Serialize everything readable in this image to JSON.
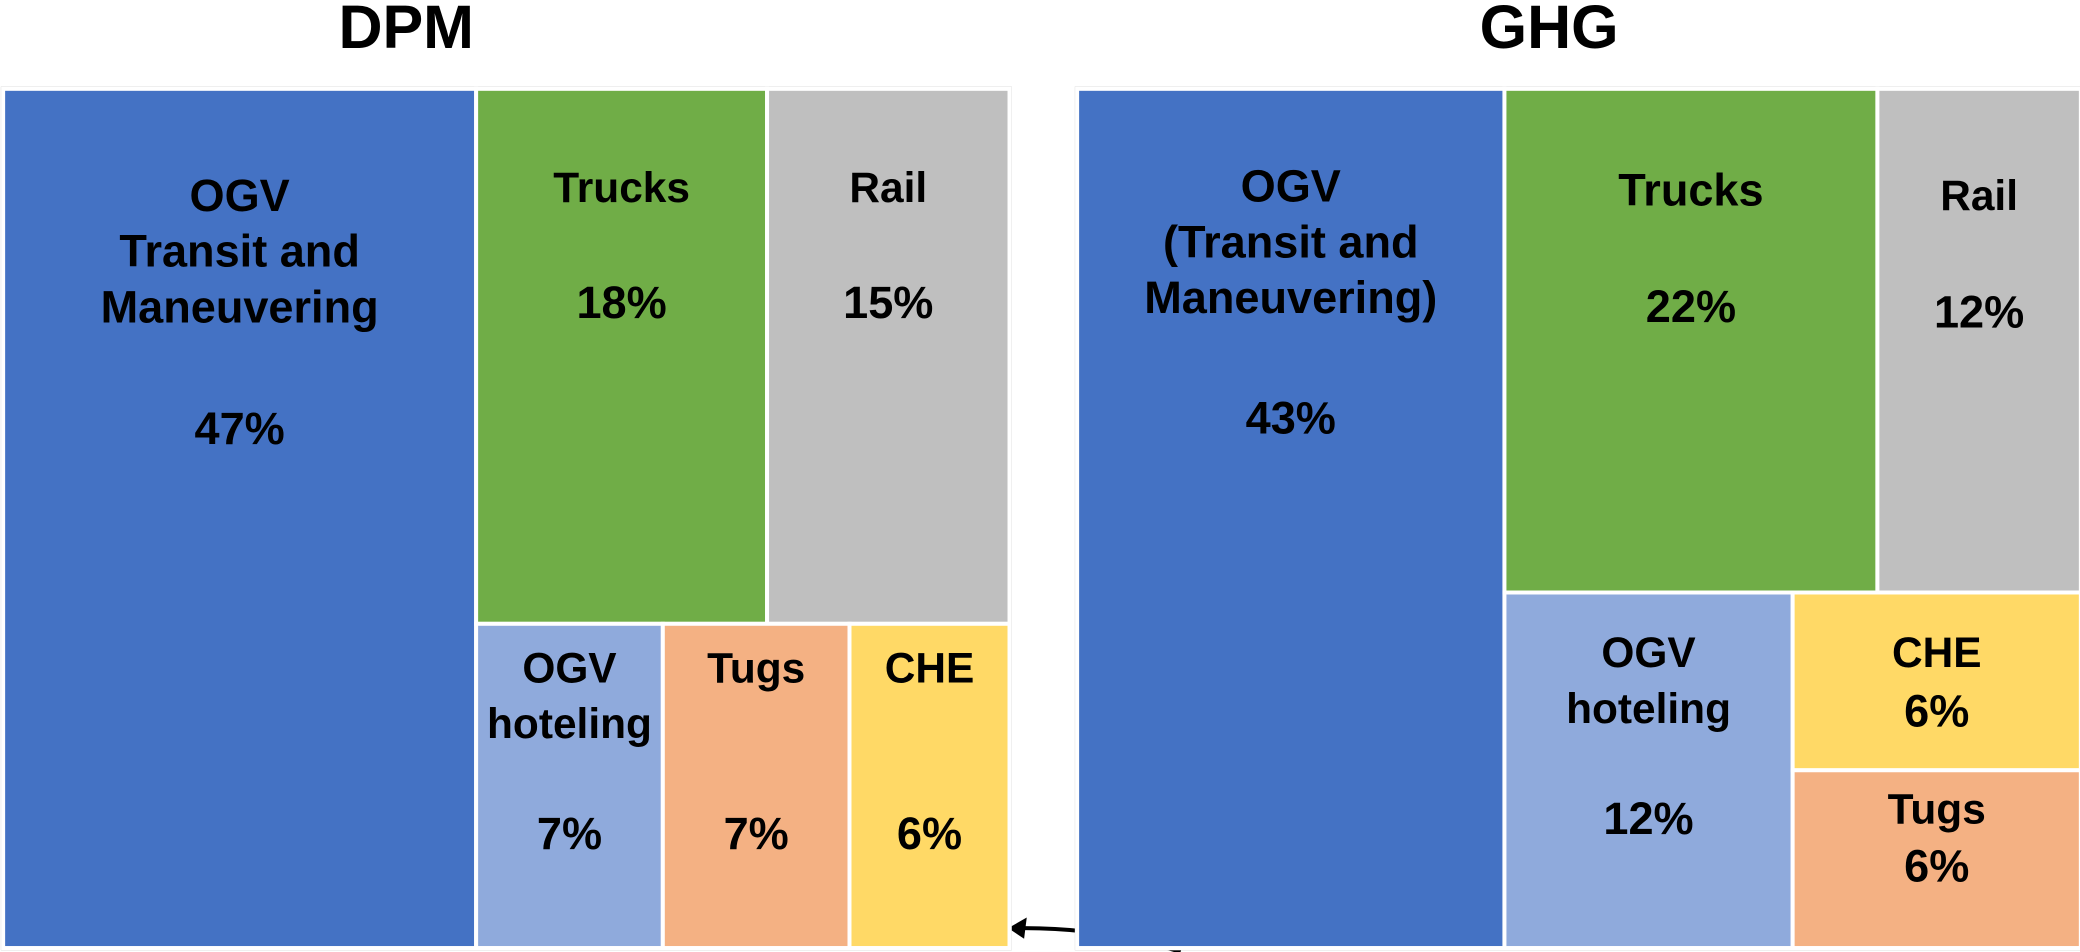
{
  "chart_data": [
    {
      "type": "treemap",
      "title": "DPM",
      "categories": [
        "OGV\nTransit and\nManeuvering",
        "Trucks",
        "Rail",
        "OGV\nhoteling",
        "Tugs",
        "CHE"
      ],
      "values": [
        47,
        18,
        15,
        7,
        7,
        6
      ],
      "value_labels": [
        "47%",
        "18%",
        "15%",
        "7%",
        "7%",
        "6%"
      ],
      "colors": [
        "#4472c4",
        "#70ad47",
        "#bfbfbf",
        "#8faadc",
        "#f4b183",
        "#ffd966"
      ]
    },
    {
      "type": "treemap",
      "title": "GHG",
      "categories": [
        "OGV\n(Transit and\nManeuvering)",
        "Trucks",
        "Rail",
        "OGV\nhoteling",
        "CHE",
        "Tugs"
      ],
      "values": [
        43,
        22,
        12,
        12,
        6,
        6
      ],
      "value_labels": [
        "43%",
        "22%",
        "12%",
        "12%",
        "6%",
        "6%"
      ],
      "colors": [
        "#4472c4",
        "#70ad47",
        "#bfbfbf",
        "#8faadc",
        "#ffd966",
        "#f4b183"
      ]
    }
  ]
}
